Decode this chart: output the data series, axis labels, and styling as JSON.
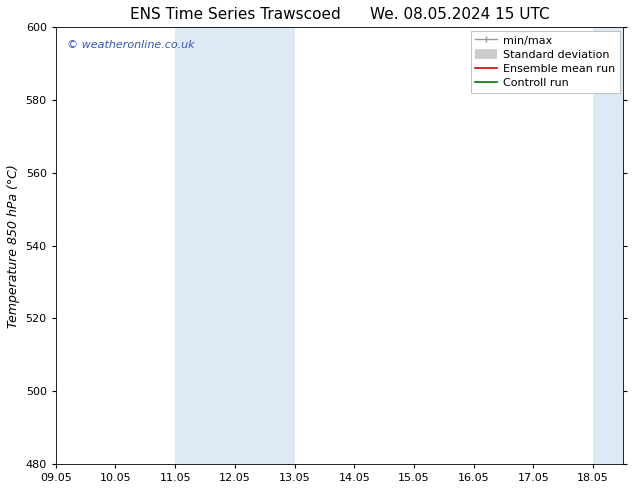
{
  "title_left": "ENS Time Series Trawscoed",
  "title_right": "We. 08.05.2024 15 UTC",
  "ylabel": "Temperature 850 hPa (°C)",
  "xlim": [
    0,
    9.5
  ],
  "ylim": [
    480,
    600
  ],
  "yticks": [
    480,
    500,
    520,
    540,
    560,
    580,
    600
  ],
  "xtick_labels": [
    "09.05",
    "10.05",
    "11.05",
    "12.05",
    "13.05",
    "14.05",
    "15.05",
    "16.05",
    "17.05",
    "18.05"
  ],
  "xtick_positions": [
    0,
    1,
    2,
    3,
    4,
    5,
    6,
    7,
    8,
    9
  ],
  "shaded_regions": [
    {
      "xmin": 2,
      "xmax": 4,
      "color": "#ddeaf5"
    },
    {
      "xmin": 9,
      "xmax": 9.5,
      "color": "#ddeaf5"
    }
  ],
  "watermark_text": "© weatheronline.co.uk",
  "watermark_color": "#3355bb",
  "legend_entries": [
    {
      "label": "min/max"
    },
    {
      "label": "Standard deviation"
    },
    {
      "label": "Ensemble mean run"
    },
    {
      "label": "Controll run"
    }
  ],
  "legend_colors": [
    "#999999",
    "#cccccc",
    "#cc0000",
    "#007700"
  ],
  "bg_color": "#ffffff",
  "plot_bg_color": "#ffffff",
  "title_fontsize": 11,
  "tick_fontsize": 8,
  "ylabel_fontsize": 9,
  "legend_fontsize": 8,
  "watermark_fontsize": 8
}
